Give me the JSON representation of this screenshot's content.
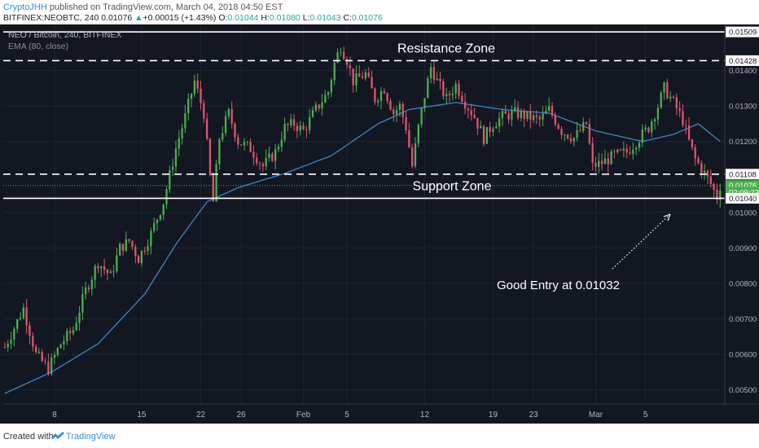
{
  "header": {
    "author": "CryptoJHH",
    "published": "published on TradingView.com, March 04, 2018 04:50 EST",
    "symbol": "BITFINEX:NEOBTC, 240",
    "last": "0.01076",
    "change": "+0.00015 (+1.43%)",
    "o_label": "O:",
    "o_value": "0.01044",
    "h_label": "H:",
    "h_value": "0.01080",
    "l_label": "L:",
    "l_value": "0.01043",
    "c_label": "C:",
    "c_value": "0.01076"
  },
  "footer": {
    "created_with": "Created with",
    "brand": "TradingView"
  },
  "chart_data": {
    "type": "candlestick",
    "title": "NEO / Bitcoin, 240, BITFINEX",
    "indicator": "EMA (80, close)",
    "ylim": [
      0.0046,
      0.0153
    ],
    "x_labels": [
      "8",
      "15",
      "22",
      "26",
      "Feb",
      "5",
      "12",
      "19",
      "23",
      "Mar",
      "5"
    ],
    "y_ticks": [
      "0.01400",
      "0.01300",
      "0.01200",
      "0.01000",
      "0.00900",
      "0.00800",
      "0.00700",
      "0.00600",
      "0.00500"
    ],
    "price_labels": [
      {
        "text": "0.01509",
        "value": 0.01509,
        "style": "solid"
      },
      {
        "text": "0.01428",
        "value": 0.01428,
        "style": "dashed"
      },
      {
        "text": "0.01108",
        "value": 0.01108,
        "style": "dashed"
      },
      {
        "text": "0.01076",
        "value": 0.01076,
        "style": "last"
      },
      {
        "text": "02:09:23",
        "value": 0.01057,
        "style": "countdown"
      },
      {
        "text": "0.01040",
        "value": 0.0104,
        "style": "solid"
      }
    ],
    "annotations": {
      "resistance": "Resistance Zone",
      "support": "Support Zone",
      "entry": "Good Entry at 0.01032"
    },
    "approx_price_path": [
      [
        0,
        0.0062
      ],
      [
        6,
        0.0073
      ],
      [
        10,
        0.006
      ],
      [
        14,
        0.0056
      ],
      [
        18,
        0.0063
      ],
      [
        22,
        0.0067
      ],
      [
        26,
        0.0078
      ],
      [
        30,
        0.0086
      ],
      [
        34,
        0.0082
      ],
      [
        37,
        0.009
      ],
      [
        40,
        0.0092
      ],
      [
        43,
        0.0087
      ],
      [
        47,
        0.0094
      ],
      [
        51,
        0.0103
      ],
      [
        55,
        0.0118
      ],
      [
        58,
        0.0127
      ],
      [
        61,
        0.0137
      ],
      [
        64,
        0.0128
      ],
      [
        66,
        0.011
      ],
      [
        67,
        0.0103
      ],
      [
        69,
        0.0121
      ],
      [
        72,
        0.0128
      ],
      [
        75,
        0.012
      ],
      [
        79,
        0.0118
      ],
      [
        83,
        0.0113
      ],
      [
        87,
        0.0117
      ],
      [
        90,
        0.0124
      ],
      [
        93,
        0.0125
      ],
      [
        96,
        0.0123
      ],
      [
        100,
        0.0129
      ],
      [
        104,
        0.0134
      ],
      [
        106,
        0.0142
      ],
      [
        108,
        0.0147
      ],
      [
        110,
        0.0143
      ],
      [
        112,
        0.0137
      ],
      [
        116,
        0.0139
      ],
      [
        119,
        0.0132
      ],
      [
        122,
        0.0135
      ],
      [
        125,
        0.0128
      ],
      [
        127,
        0.013
      ],
      [
        129,
        0.0124
      ],
      [
        131,
        0.0113
      ],
      [
        133,
        0.0124
      ],
      [
        135,
        0.0133
      ],
      [
        137,
        0.0141
      ],
      [
        139,
        0.0137
      ],
      [
        142,
        0.0132
      ],
      [
        145,
        0.0136
      ],
      [
        148,
        0.0131
      ],
      [
        151,
        0.0127
      ],
      [
        154,
        0.0121
      ],
      [
        157,
        0.0125
      ],
      [
        160,
        0.0127
      ],
      [
        164,
        0.0128
      ],
      [
        168,
        0.0127
      ],
      [
        172,
        0.0126
      ],
      [
        175,
        0.0129
      ],
      [
        179,
        0.0123
      ],
      [
        183,
        0.0121
      ],
      [
        187,
        0.0125
      ],
      [
        189,
        0.0113
      ],
      [
        192,
        0.0114
      ],
      [
        196,
        0.0116
      ],
      [
        200,
        0.0117
      ],
      [
        204,
        0.0121
      ],
      [
        207,
        0.0124
      ],
      [
        210,
        0.013
      ],
      [
        212,
        0.0135
      ],
      [
        215,
        0.0131
      ],
      [
        218,
        0.0126
      ],
      [
        220,
        0.012
      ],
      [
        222,
        0.0115
      ],
      [
        225,
        0.0111
      ],
      [
        227,
        0.0108
      ],
      [
        229,
        0.01043
      ],
      [
        230,
        0.01076
      ]
    ],
    "ema_path": [
      [
        0,
        0.0049
      ],
      [
        15,
        0.0055
      ],
      [
        30,
        0.0063
      ],
      [
        45,
        0.0077
      ],
      [
        55,
        0.0091
      ],
      [
        65,
        0.0103
      ],
      [
        75,
        0.0107
      ],
      [
        90,
        0.0111
      ],
      [
        105,
        0.0116
      ],
      [
        120,
        0.0125
      ],
      [
        130,
        0.0129
      ],
      [
        145,
        0.0131
      ],
      [
        160,
        0.0129
      ],
      [
        175,
        0.0128
      ],
      [
        190,
        0.0123
      ],
      [
        205,
        0.012
      ],
      [
        215,
        0.0122
      ],
      [
        223,
        0.0125
      ],
      [
        230,
        0.012
      ]
    ],
    "x_tick_positions": [
      16,
      44,
      63,
      76,
      96,
      110,
      135,
      157,
      170,
      190,
      206
    ]
  }
}
